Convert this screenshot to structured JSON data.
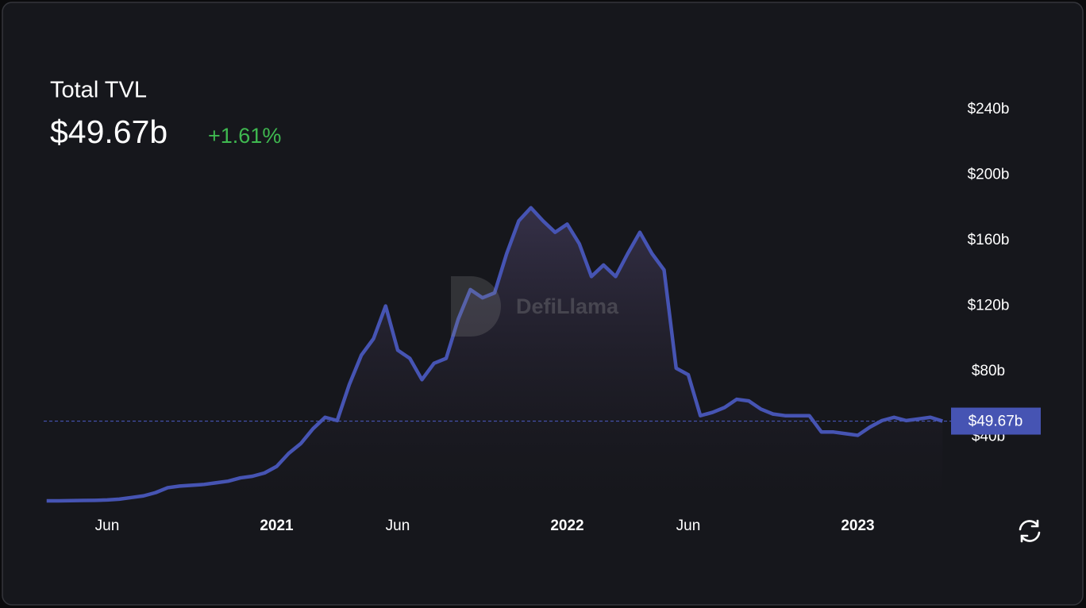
{
  "header": {
    "title": "Total TVL",
    "value": "$49.67b",
    "change": "+1.61%"
  },
  "watermark": "DefiLlama",
  "chart_data": {
    "type": "area",
    "categories": [
      null,
      null,
      null,
      null,
      null,
      "Jun",
      null,
      null,
      null,
      null,
      null,
      null,
      null,
      null,
      null,
      null,
      null,
      null,
      null,
      "2021",
      null,
      null,
      null,
      null,
      null,
      null,
      null,
      null,
      null,
      "Jun",
      null,
      null,
      null,
      null,
      null,
      null,
      null,
      null,
      null,
      null,
      null,
      null,
      null,
      "2022",
      null,
      null,
      null,
      null,
      null,
      null,
      null,
      null,
      null,
      "Jun",
      null,
      null,
      null,
      null,
      null,
      null,
      null,
      null,
      null,
      null,
      null,
      null,
      null,
      "2023",
      null,
      null,
      null,
      null,
      null,
      null,
      null
    ],
    "series": [
      {
        "name": "TVL",
        "color": "#4654b3",
        "values": [
          1,
          1,
          1.1,
          1.2,
          1.3,
          1.5,
          2,
          3,
          4,
          6,
          9,
          10,
          10.5,
          11,
          12,
          13,
          15,
          16,
          18,
          22,
          30,
          36,
          45,
          52,
          50,
          72,
          90,
          100,
          120,
          93,
          88,
          75,
          85,
          88,
          112,
          130,
          125,
          128,
          152,
          172,
          180,
          172,
          165,
          170,
          158,
          138,
          145,
          138,
          152,
          165,
          152,
          142,
          82,
          78,
          53,
          55,
          58,
          63,
          62,
          57,
          54,
          53,
          53,
          53,
          43,
          43,
          42,
          41,
          46,
          50,
          52,
          50,
          51,
          52,
          49.67
        ]
      }
    ],
    "ylim": [
      0,
      240
    ],
    "yticks": [
      {
        "value": 40,
        "label": "$40b"
      },
      {
        "value": 80,
        "label": "$80b"
      },
      {
        "value": 120,
        "label": "$120b"
      },
      {
        "value": 160,
        "label": "$160b"
      },
      {
        "value": 200,
        "label": "$200b"
      },
      {
        "value": 240,
        "label": "$240b"
      }
    ]
  }
}
